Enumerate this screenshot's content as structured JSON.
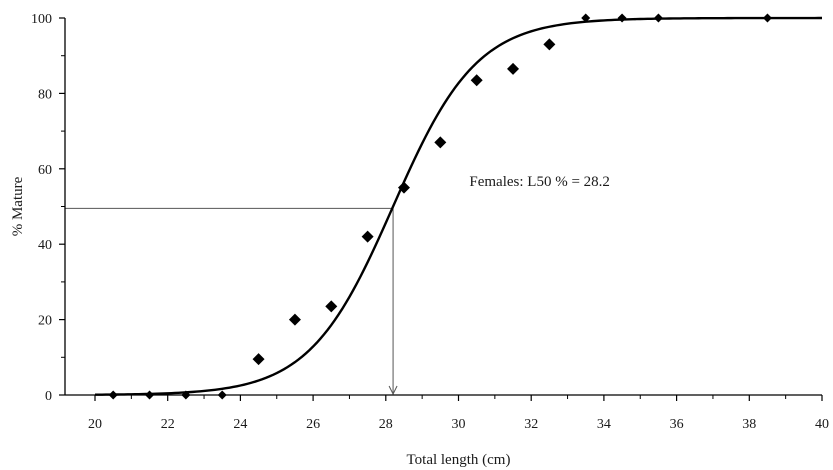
{
  "chart_data": {
    "type": "scatter",
    "title": "",
    "xlabel": "Total length (cm)",
    "ylabel": "% Mature",
    "xlim": [
      20,
      40
    ],
    "ylim": [
      0,
      100
    ],
    "xticks": [
      20,
      22,
      24,
      26,
      28,
      30,
      32,
      34,
      36,
      38,
      40
    ],
    "yticks": [
      0,
      20,
      40,
      60,
      80,
      100
    ],
    "grid": false,
    "legend": "none",
    "series": [
      {
        "kind": "points",
        "marker": "diamond",
        "color": "#000000",
        "x": [
          20.5,
          21.5,
          22.5,
          23.5,
          24.5,
          25.5,
          26.5,
          27.5,
          28.5,
          29.5,
          30.5,
          31.5,
          32.5,
          33.5,
          34.5,
          35.5,
          38.5
        ],
        "y": [
          0,
          0,
          0,
          0,
          9.5,
          20,
          23.5,
          42,
          55,
          67,
          83.5,
          86.5,
          93,
          100,
          100,
          100,
          100
        ]
      },
      {
        "kind": "fitted-curve",
        "model": "logistic",
        "color": "#000000",
        "l50": 28.2,
        "slope": 0.87
      }
    ],
    "reference_lines": {
      "horizontal_at_y": 49.5,
      "vertical_at_x": 28.2,
      "vertical_arrow": "down"
    },
    "annotations": [
      {
        "text": "Females: L50 % = 28.2",
        "anchor_x": 30.3,
        "anchor_y": 55.5
      }
    ]
  }
}
